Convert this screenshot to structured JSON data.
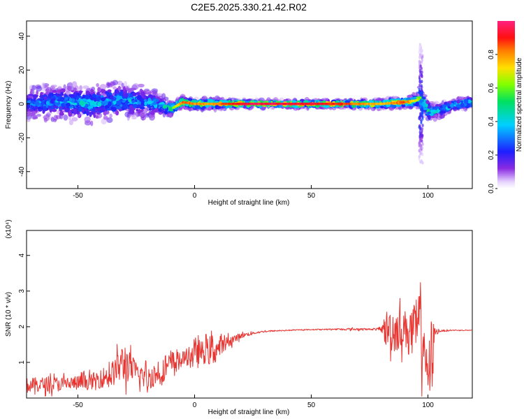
{
  "title": "C2E5.2025.330.21.42.R02",
  "colors": {
    "snr_line": "#e8332f",
    "axis": "#000000",
    "background": "#ffffff"
  },
  "chart_data": [
    {
      "type": "heatmap",
      "title": "C2E5.2025.330.21.42.R02",
      "xlabel": "Height of straight line (km)",
      "ylabel": "Frequency (Hz)",
      "xlim": [
        -72,
        119
      ],
      "ylim": [
        -50,
        49
      ],
      "x_ticks": [
        -50,
        0,
        50,
        100
      ],
      "y_ticks": [
        -40,
        -20,
        0,
        20,
        40
      ],
      "grid": false,
      "colormap": "rainbow (violet-blue-cyan-green-yellow-red-magenta)",
      "colorbar": {
        "label": "Normalized spectral amplitude",
        "range": [
          0,
          1
        ],
        "ticks": [
          0.0,
          0.2,
          0.4,
          0.6,
          0.8
        ]
      },
      "ridge": {
        "x": [
          -72,
          -60,
          -45,
          -30,
          -20,
          -14,
          -10,
          -5,
          0,
          10,
          20,
          40,
          60,
          80,
          90,
          95,
          97,
          100,
          102,
          110,
          119
        ],
        "freq": [
          0,
          1,
          0,
          2,
          1,
          -1,
          -3,
          1,
          0,
          0,
          0,
          0,
          0,
          0,
          1,
          2,
          4,
          -4,
          -5,
          -1,
          1
        ],
        "amplitude": [
          0.35,
          0.4,
          0.45,
          0.45,
          0.4,
          0.45,
          0.55,
          0.85,
          0.8,
          0.8,
          0.95,
          0.95,
          0.9,
          0.75,
          0.85,
          0.7,
          0.6,
          0.55,
          0.45,
          0.5,
          0.55
        ],
        "spread_hz": [
          9,
          10,
          11,
          10,
          9,
          6,
          4,
          3,
          3,
          3,
          2,
          2,
          2,
          3,
          3,
          4,
          6,
          6,
          5,
          3,
          3
        ]
      },
      "transient_x": 97,
      "transient_extent_hz": [
        -35,
        35
      ]
    },
    {
      "type": "line",
      "xlabel": "Height of straight line (km)",
      "ylabel": "SNR (10 * v/v)",
      "y_multiplier": "(x10⁴)",
      "xlim": [
        -72,
        119
      ],
      "ylim": [
        0,
        4.7
      ],
      "x_ticks": [
        -50,
        0,
        50,
        100
      ],
      "y_ticks": [
        1,
        2,
        3,
        4
      ],
      "grid": false,
      "series": [
        {
          "color": "#e8332f",
          "envelope": {
            "x": [
              -72,
              -65,
              -55,
              -45,
              -40,
              -35,
              -32,
              -30,
              -28,
              -25,
              -20,
              -15,
              -12,
              -10,
              -5,
              0,
              5,
              8,
              10,
              15,
              20,
              25,
              30,
              40,
              50,
              60,
              70,
              75,
              80,
              82,
              85,
              90,
              95,
              97,
              98,
              100,
              101,
              102,
              103,
              105,
              110,
              119
            ],
            "base": [
              0.35,
              0.38,
              0.4,
              0.45,
              0.55,
              0.7,
              0.9,
              1.0,
              0.9,
              0.7,
              0.55,
              0.7,
              0.85,
              0.95,
              1.1,
              1.25,
              1.3,
              1.35,
              1.4,
              1.6,
              1.75,
              1.82,
              1.87,
              1.9,
              1.92,
              1.93,
              1.93,
              1.93,
              1.93,
              1.93,
              1.93,
              1.93,
              1.93,
              1.93,
              1.8,
              0.5,
              1.0,
              1.5,
              1.85,
              1.88,
              1.9,
              1.9
            ],
            "noise": [
              0.35,
              0.35,
              0.35,
              0.35,
              0.45,
              0.6,
              0.8,
              1.1,
              0.7,
              0.55,
              0.55,
              0.5,
              0.55,
              0.6,
              0.35,
              0.5,
              0.55,
              0.85,
              0.4,
              0.25,
              0.12,
              0.06,
              0.04,
              0.02,
              0.02,
              0.03,
              0.06,
              0.03,
              0.08,
              0.9,
              1.1,
              0.9,
              1.2,
              2.4,
              1.4,
              0.6,
              2.2,
              1.2,
              0.2,
              0.05,
              0.02,
              0.02
            ]
          }
        }
      ]
    }
  ]
}
